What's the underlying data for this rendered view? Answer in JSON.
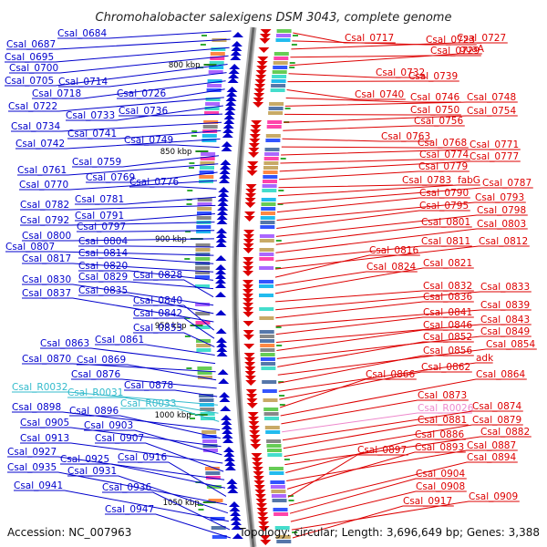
{
  "title": "Chromohalobacter salexigens DSM 3043, complete genome",
  "accession": "Accession: NC_007963",
  "summary": "Topology: circular; Length: 3,696,649 bp; Genes: 3,388",
  "colors": {
    "left_strand": "#0000cc",
    "right_strand": "#dd0000",
    "rna": "#33bbcc",
    "pseudogene": "#ee88cc",
    "axis": "#888888",
    "tick": "#228822"
  },
  "kbp_ticks": [
    "800 kbp",
    "850 kbp",
    "900 kbp",
    "950 kbp",
    "1000 kbp",
    "1050 kbp"
  ],
  "left_labels": [
    {
      "text": "Csal_0684",
      "type": "cds"
    },
    {
      "text": "Csal_0687",
      "type": "cds"
    },
    {
      "text": "Csal_0695",
      "type": "cds"
    },
    {
      "text": "Csal_0700",
      "type": "cds"
    },
    {
      "text": "Csal_0705",
      "type": "cds"
    },
    {
      "text": "Csal_0714",
      "type": "cds"
    },
    {
      "text": "Csal_0718",
      "type": "cds"
    },
    {
      "text": "Csal_0726",
      "type": "cds"
    },
    {
      "text": "Csal_0722",
      "type": "cds"
    },
    {
      "text": "Csal_0733",
      "type": "cds"
    },
    {
      "text": "Csal_0736",
      "type": "cds"
    },
    {
      "text": "Csal_0734",
      "type": "cds"
    },
    {
      "text": "Csal_0741",
      "type": "cds"
    },
    {
      "text": "Csal_0742",
      "type": "cds"
    },
    {
      "text": "Csal_0749",
      "type": "cds"
    },
    {
      "text": "Csal_0759",
      "type": "cds"
    },
    {
      "text": "Csal_0761",
      "type": "cds"
    },
    {
      "text": "Csal_0769",
      "type": "cds"
    },
    {
      "text": "Csal_0770",
      "type": "cds"
    },
    {
      "text": "Csal_0776",
      "type": "cds"
    },
    {
      "text": "Csal_0781",
      "type": "cds"
    },
    {
      "text": "Csal_0782",
      "type": "cds"
    },
    {
      "text": "Csal_0791",
      "type": "cds"
    },
    {
      "text": "Csal_0792",
      "type": "cds"
    },
    {
      "text": "Csal_0797",
      "type": "cds"
    },
    {
      "text": "Csal_0800",
      "type": "cds"
    },
    {
      "text": "Csal_0804",
      "type": "cds"
    },
    {
      "text": "Csal_0807",
      "type": "cds"
    },
    {
      "text": "Csal_0814",
      "type": "cds"
    },
    {
      "text": "Csal_0817",
      "type": "cds"
    },
    {
      "text": "Csal_0820",
      "type": "cds"
    },
    {
      "text": "Csal_0829",
      "type": "cds"
    },
    {
      "text": "Csal_0828",
      "type": "cds"
    },
    {
      "text": "Csal_0830",
      "type": "cds"
    },
    {
      "text": "Csal_0835",
      "type": "cds"
    },
    {
      "text": "Csal_0837",
      "type": "cds"
    },
    {
      "text": "Csal_0840",
      "type": "cds"
    },
    {
      "text": "Csal_0842",
      "type": "cds"
    },
    {
      "text": "Csal_0853",
      "type": "cds"
    },
    {
      "text": "Csal_0861",
      "type": "cds"
    },
    {
      "text": "Csal_0863",
      "type": "cds"
    },
    {
      "text": "Csal_0870",
      "type": "cds"
    },
    {
      "text": "Csal_0869",
      "type": "cds"
    },
    {
      "text": "Csal_0876",
      "type": "cds"
    },
    {
      "text": "Csal_0878",
      "type": "cds"
    },
    {
      "text": "Csal_R0032",
      "type": "rna"
    },
    {
      "text": "Csal_R0031",
      "type": "rna"
    },
    {
      "text": "Csal_R0033",
      "type": "rna"
    },
    {
      "text": "Csal_0898",
      "type": "cds"
    },
    {
      "text": "Csal_0896",
      "type": "cds"
    },
    {
      "text": "Csal_0905",
      "type": "cds"
    },
    {
      "text": "Csal_0903",
      "type": "cds"
    },
    {
      "text": "Csal_0913",
      "type": "cds"
    },
    {
      "text": "Csal_0907",
      "type": "cds"
    },
    {
      "text": "Csal_0927",
      "type": "cds"
    },
    {
      "text": "Csal_0925",
      "type": "cds"
    },
    {
      "text": "Csal_0916",
      "type": "cds"
    },
    {
      "text": "Csal_0935",
      "type": "cds"
    },
    {
      "text": "Csal_0931",
      "type": "cds"
    },
    {
      "text": "Csal_0941",
      "type": "cds"
    },
    {
      "text": "Csal_0936",
      "type": "cds"
    },
    {
      "text": "Csal_0947",
      "type": "cds"
    }
  ],
  "right_labels": [
    {
      "text": "Csal_0717",
      "type": "cds"
    },
    {
      "text": "Csal_0723",
      "type": "cds"
    },
    {
      "text": "Csal_0727",
      "type": "cds"
    },
    {
      "text": "Csal_0729",
      "type": "cds"
    },
    {
      "text": "guaA",
      "type": "cds"
    },
    {
      "text": "Csal_0732",
      "type": "cds"
    },
    {
      "text": "Csal_0739",
      "type": "cds"
    },
    {
      "text": "Csal_0740",
      "type": "cds"
    },
    {
      "text": "Csal_0746",
      "type": "cds"
    },
    {
      "text": "Csal_0748",
      "type": "cds"
    },
    {
      "text": "Csal_0750",
      "type": "cds"
    },
    {
      "text": "Csal_0754",
      "type": "cds"
    },
    {
      "text": "Csal_0756",
      "type": "cds"
    },
    {
      "text": "Csal_0763",
      "type": "cds"
    },
    {
      "text": "Csal_0768",
      "type": "cds"
    },
    {
      "text": "Csal_0771",
      "type": "cds"
    },
    {
      "text": "Csal_0774",
      "type": "cds"
    },
    {
      "text": "Csal_0777",
      "type": "cds"
    },
    {
      "text": "Csal_0779",
      "type": "cds"
    },
    {
      "text": "Csal_0783",
      "type": "cds"
    },
    {
      "text": "fabG",
      "type": "cds"
    },
    {
      "text": "Csal_0787",
      "type": "cds"
    },
    {
      "text": "Csal_0790",
      "type": "cds"
    },
    {
      "text": "Csal_0793",
      "type": "cds"
    },
    {
      "text": "Csal_0795",
      "type": "cds"
    },
    {
      "text": "Csal_0798",
      "type": "cds"
    },
    {
      "text": "Csal_0801",
      "type": "cds"
    },
    {
      "text": "Csal_0803",
      "type": "cds"
    },
    {
      "text": "Csal_0811",
      "type": "cds"
    },
    {
      "text": "Csal_0812",
      "type": "cds"
    },
    {
      "text": "Csal_0816",
      "type": "cds"
    },
    {
      "text": "Csal_0824",
      "type": "cds"
    },
    {
      "text": "Csal_0821",
      "type": "cds"
    },
    {
      "text": "Csal_0832",
      "type": "cds"
    },
    {
      "text": "Csal_0833",
      "type": "cds"
    },
    {
      "text": "Csal_0836",
      "type": "cds"
    },
    {
      "text": "Csal_0839",
      "type": "cds"
    },
    {
      "text": "Csal_0841",
      "type": "cds"
    },
    {
      "text": "Csal_0843",
      "type": "cds"
    },
    {
      "text": "Csal_0846",
      "type": "cds"
    },
    {
      "text": "Csal_0849",
      "type": "cds"
    },
    {
      "text": "Csal_0852",
      "type": "cds"
    },
    {
      "text": "Csal_0854",
      "type": "cds"
    },
    {
      "text": "Csal_0856",
      "type": "cds"
    },
    {
      "text": "adk",
      "type": "cds"
    },
    {
      "text": "Csal_0862",
      "type": "cds"
    },
    {
      "text": "Csal_0866",
      "type": "cds"
    },
    {
      "text": "Csal_0864",
      "type": "cds"
    },
    {
      "text": "Csal_0873",
      "type": "cds"
    },
    {
      "text": "Csal_R0026",
      "type": "pseudo"
    },
    {
      "text": "Csal_0874",
      "type": "cds"
    },
    {
      "text": "Csal_0881",
      "type": "cds"
    },
    {
      "text": "Csal_0879",
      "type": "cds"
    },
    {
      "text": "Csal_0882",
      "type": "cds"
    },
    {
      "text": "Csal_0886",
      "type": "cds"
    },
    {
      "text": "Csal_0887",
      "type": "cds"
    },
    {
      "text": "Csal_0893",
      "type": "cds"
    },
    {
      "text": "Csal_0897",
      "type": "cds"
    },
    {
      "text": "Csal_0894",
      "type": "cds"
    },
    {
      "text": "Csal_0904",
      "type": "cds"
    },
    {
      "text": "Csal_0908",
      "type": "cds"
    },
    {
      "text": "Csal_0909",
      "type": "cds"
    },
    {
      "text": "Csal_0917",
      "type": "cds"
    }
  ]
}
